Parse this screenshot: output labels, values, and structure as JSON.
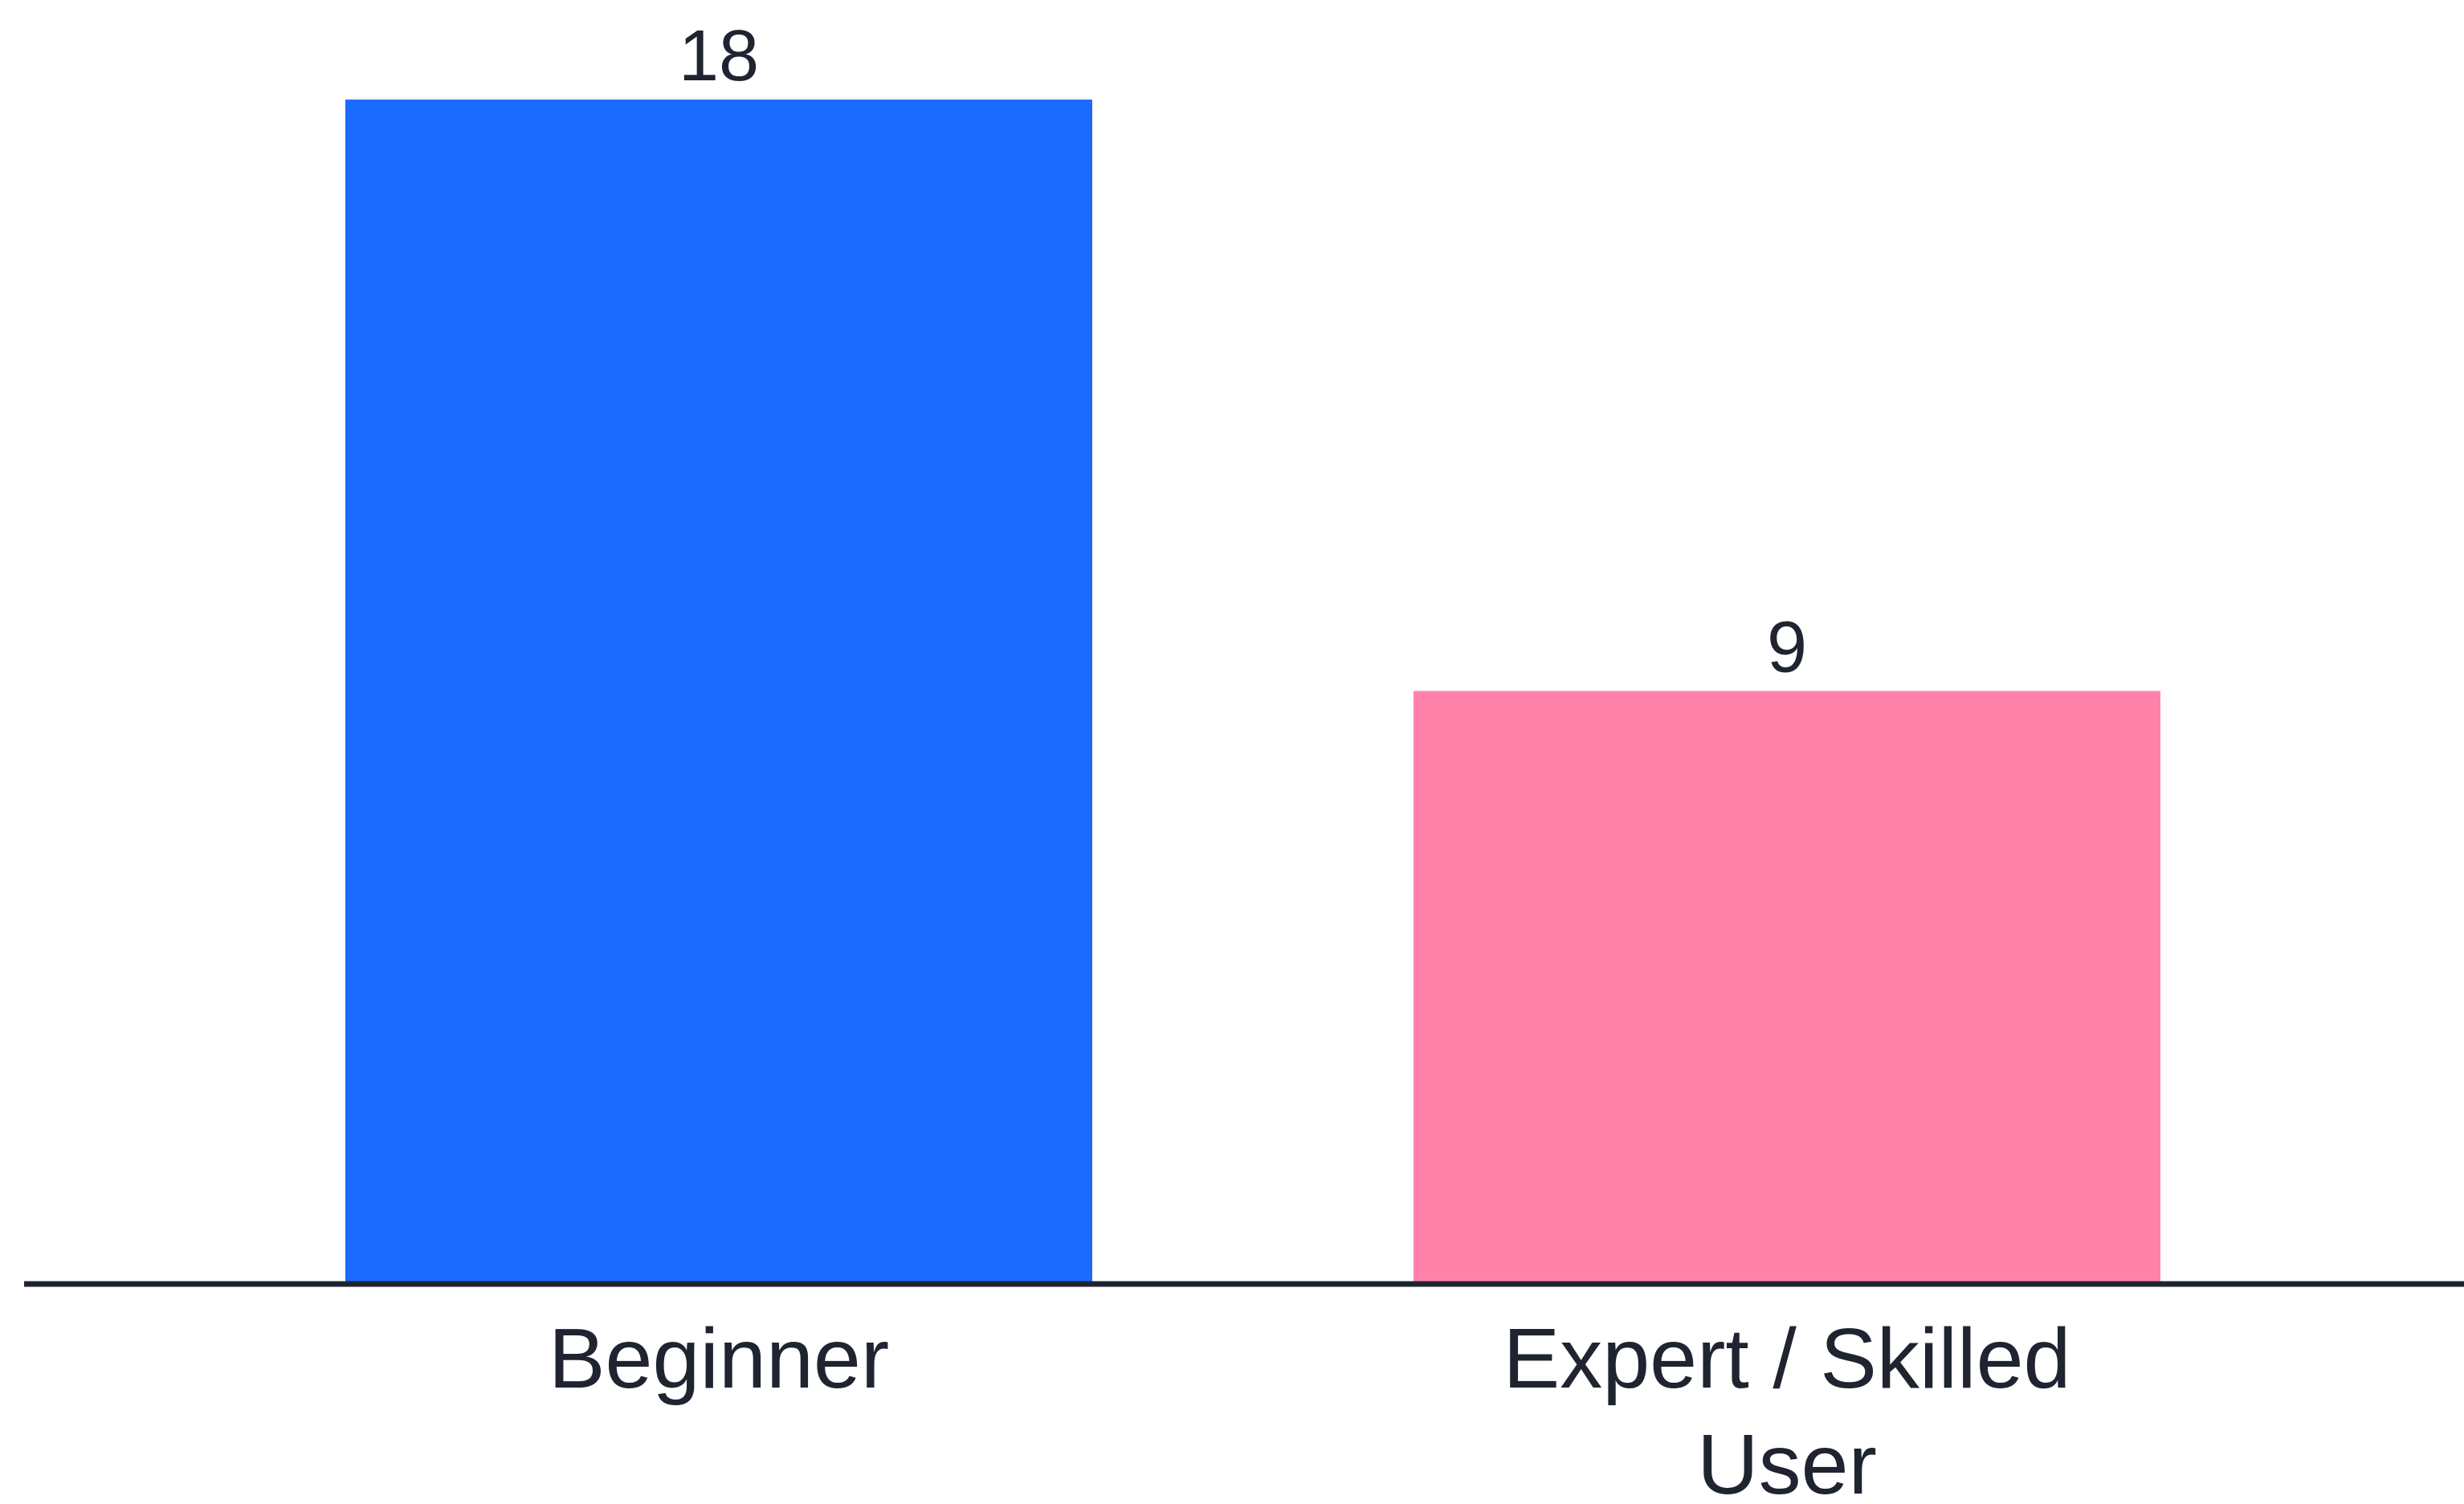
{
  "chart_data": {
    "type": "bar",
    "categories": [
      [
        "Beginner"
      ],
      [
        "Expert / Skilled",
        "User"
      ]
    ],
    "values": [
      18,
      9
    ],
    "value_labels": [
      "18",
      "9"
    ],
    "colors": [
      "#1c6bff",
      "#ff82aa"
    ],
    "axis_color": "#1f2430",
    "title": "",
    "xlabel": "",
    "ylabel": "",
    "ylim": [
      0,
      18
    ],
    "grid": false,
    "legend": "none"
  }
}
